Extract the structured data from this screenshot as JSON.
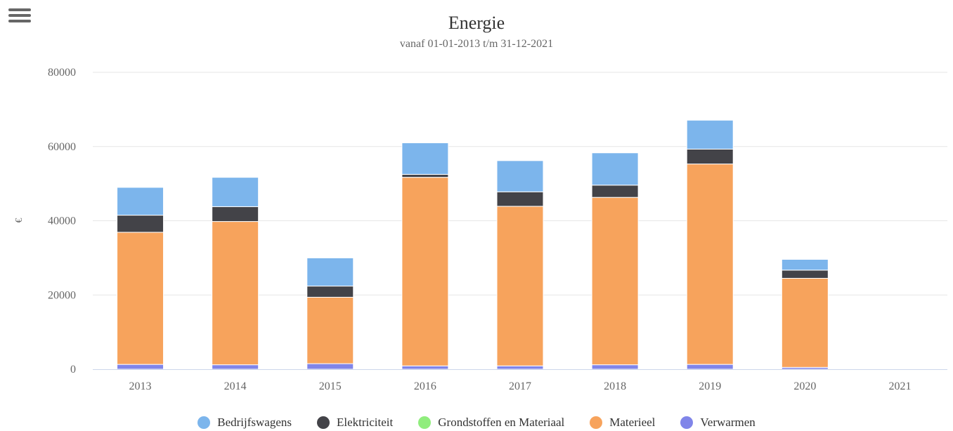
{
  "menu": {
    "icon": "hamburger-menu-icon"
  },
  "chart_data": {
    "type": "bar",
    "stacked": true,
    "title": "Energie",
    "subtitle": "vanaf 01-01-2013 t/m 31-12-2021",
    "xlabel": "",
    "ylabel": "€",
    "ylim": [
      0,
      80000
    ],
    "yticks": [
      0,
      20000,
      40000,
      60000,
      80000
    ],
    "grid": true,
    "legend": "bottom-center",
    "categories": [
      "2013",
      "2014",
      "2015",
      "2016",
      "2017",
      "2018",
      "2019",
      "2020",
      "2021"
    ],
    "series": [
      {
        "name": "Verwarmen",
        "color": "#8085e9",
        "values": [
          1300,
          1200,
          1500,
          900,
          900,
          1200,
          1300,
          500,
          0
        ]
      },
      {
        "name": "Grondstoffen en Materiaal",
        "color": "#90ed7d",
        "values": [
          0,
          0,
          0,
          0,
          0,
          0,
          0,
          0,
          0
        ]
      },
      {
        "name": "Materieel",
        "color": "#f7a35c",
        "values": [
          35600,
          38600,
          17900,
          50800,
          43000,
          45100,
          54000,
          24000,
          0
        ]
      },
      {
        "name": "Elektriciteit",
        "color": "#434348",
        "values": [
          4600,
          4000,
          3000,
          800,
          3900,
          3300,
          4000,
          2200,
          0
        ]
      },
      {
        "name": "Bedrijfswagens",
        "color": "#7cb5ec",
        "values": [
          7500,
          7900,
          7600,
          8500,
          8400,
          8700,
          7800,
          2900,
          0
        ]
      }
    ],
    "legend_order": [
      "Bedrijfswagens",
      "Elektriciteit",
      "Grondstoffen en Materiaal",
      "Materieel",
      "Verwarmen"
    ]
  }
}
